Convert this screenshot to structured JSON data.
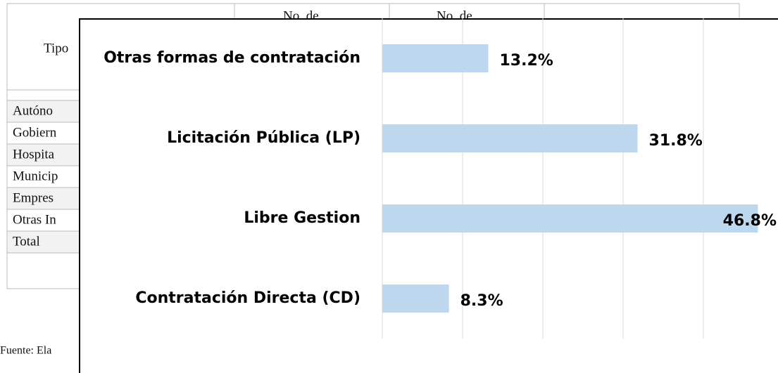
{
  "table": {
    "header": [
      "Tipo",
      "No. de",
      "No. de"
    ],
    "rows": [
      "Autóno",
      "Gobiern",
      "Hospita",
      "Municip",
      "Empres",
      "Otras In",
      "Total"
    ],
    "source": "Fuente: Ela"
  },
  "chart_data": {
    "type": "bar",
    "orientation": "horizontal",
    "categories": [
      "Otras formas de contratación",
      "Licitación Pública (LP)",
      "Libre Gestion",
      "Contratación Directa (CD)"
    ],
    "values": [
      13.2,
      31.8,
      46.8,
      8.3
    ],
    "value_labels": [
      "13.2%",
      "31.8%",
      "46.8%",
      "8.3%"
    ],
    "color": "#bdd7ee",
    "xlim": [
      0,
      50
    ],
    "xticks": [
      0,
      10,
      20,
      30,
      40
    ],
    "grid": true
  }
}
